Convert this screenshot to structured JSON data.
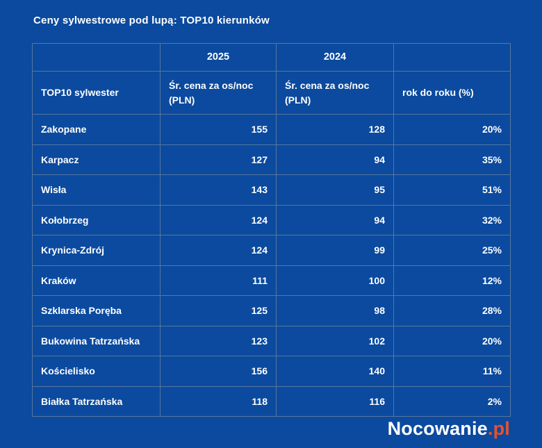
{
  "page": {
    "title": "Ceny sylwestrowe pod lupą: TOP10 kierunków",
    "background_color": "#0b4a9e",
    "grid_border_color": "#56779f",
    "text_color": "#ffffff"
  },
  "chart_data": {
    "type": "table",
    "title": "Ceny sylwestrowe pod lupą: TOP10 kierunków",
    "year_headers": {
      "col2": "2025",
      "col3": "2024"
    },
    "columns": {
      "0": "TOP10 sylwester",
      "1": "Śr. cena za os/noc (PLN)",
      "2": "Śr. cena za os/noc (PLN)",
      "3": "rok do roku (%)"
    },
    "rows": [
      {
        "city": "Zakopane",
        "price_2025": "155",
        "price_2024": "128",
        "yoy": "20%"
      },
      {
        "city": "Karpacz",
        "price_2025": "127",
        "price_2024": "94",
        "yoy": "35%"
      },
      {
        "city": "Wisła",
        "price_2025": "143",
        "price_2024": "95",
        "yoy": "51%"
      },
      {
        "city": "Kołobrzeg",
        "price_2025": "124",
        "price_2024": "94",
        "yoy": "32%"
      },
      {
        "city": "Krynica-Zdrój",
        "price_2025": "124",
        "price_2024": "99",
        "yoy": "25%"
      },
      {
        "city": "Kraków",
        "price_2025": "111",
        "price_2024": "100",
        "yoy": "12%"
      },
      {
        "city": "Szklarska Poręba",
        "price_2025": "125",
        "price_2024": "98",
        "yoy": "28%"
      },
      {
        "city": "Bukowina Tatrzańska",
        "price_2025": "123",
        "price_2024": "102",
        "yoy": "20%"
      },
      {
        "city": "Kościelisko",
        "price_2025": "156",
        "price_2024": "140",
        "yoy": "11%"
      },
      {
        "city": "Białka Tatrzańska",
        "price_2025": "118",
        "price_2024": "116",
        "yoy": "2%"
      }
    ]
  },
  "footer": {
    "logo_text": "Nocowanie",
    "logo_suffix": ".pl",
    "logo_suffix_color": "#e8512d"
  }
}
